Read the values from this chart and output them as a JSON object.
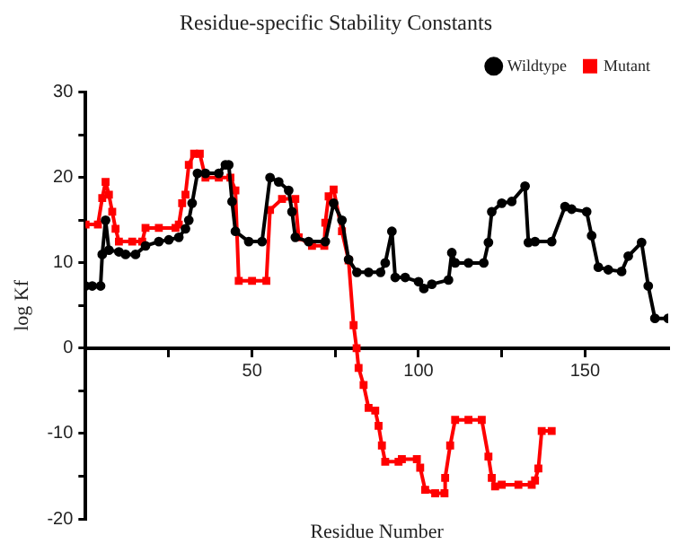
{
  "chart_data": {
    "type": "line",
    "title": "Residue-specific Stability Constants",
    "xlabel": "Residue Number",
    "ylabel": "log Kf",
    "xlim": [
      0,
      175
    ],
    "xticks": [
      {
        "value": 25,
        "label": null
      },
      50,
      {
        "value": 75,
        "label": null
      },
      100,
      {
        "value": 125,
        "label": null
      },
      150
    ],
    "ylim": [
      -20,
      30
    ],
    "yticks": [
      -20,
      {
        "value": -15,
        "label": null
      },
      -10,
      {
        "value": -5,
        "label": null
      },
      0,
      {
        "value": 5,
        "label": null
      },
      10,
      {
        "value": 15,
        "label": null
      },
      20,
      {
        "value": 25,
        "label": null
      },
      30
    ],
    "grid": false,
    "legend": "top right",
    "line_style": "solid",
    "series": [
      {
        "name": "Wildtype",
        "color": "#000000",
        "marker": "circle",
        "x": [
          0,
          2,
          4.5,
          5,
          6,
          7,
          10,
          12,
          15,
          18,
          22,
          25,
          28,
          30,
          31,
          32,
          33.6,
          36,
          40,
          42,
          43,
          44,
          45,
          49,
          53,
          55.4,
          58,
          61,
          62,
          63,
          67,
          72,
          74.5,
          77,
          79,
          81.5,
          85,
          88.6,
          90,
          92,
          93,
          96,
          100,
          101.6,
          104,
          109,
          110,
          111,
          115,
          119.6,
          121,
          122,
          125,
          128,
          132,
          133,
          135,
          140,
          144,
          146,
          150.5,
          152,
          154,
          157,
          161,
          163,
          167,
          169,
          171,
          175
        ],
        "values": [
          7.3,
          7.3,
          7.3,
          11,
          15,
          11.5,
          11.3,
          11,
          11,
          12,
          12.5,
          12.7,
          13,
          14,
          15,
          17,
          20.5,
          20.5,
          20.5,
          21.5,
          21.5,
          17.2,
          13.7,
          12.5,
          12.5,
          20,
          19.5,
          18.5,
          16,
          13,
          12.5,
          12.5,
          17,
          15,
          10.4,
          8.9,
          8.9,
          8.9,
          10,
          13.7,
          8.3,
          8.3,
          7.8,
          7,
          7.5,
          8,
          11.2,
          10,
          10,
          10,
          12.4,
          16,
          17,
          17.2,
          19,
          12.4,
          12.5,
          12.5,
          16.6,
          16.3,
          16,
          13.2,
          9.5,
          9.2,
          9,
          10.8,
          12.4,
          7.3,
          3.5,
          3.5
        ]
      },
      {
        "name": "Mutant",
        "color": "#ff0000",
        "marker": "square",
        "x": [
          0,
          3.7,
          5,
          6,
          7,
          8,
          9,
          10,
          14,
          17,
          18,
          22,
          27,
          28,
          29,
          30,
          31,
          32.6,
          34.3,
          36,
          40,
          43.5,
          45,
          46,
          50,
          54.3,
          55.4,
          59,
          63,
          64,
          68,
          71.7,
          72,
          73,
          74.5,
          77,
          79,
          80.5,
          81.4,
          82,
          83.5,
          85,
          87,
          88,
          89,
          90,
          94,
          95,
          99.5,
          100.5,
          102,
          105,
          107.8,
          108,
          109.5,
          111,
          115,
          119,
          121,
          122,
          123,
          125,
          130,
          134,
          135,
          136,
          137,
          140
        ],
        "values": [
          14.5,
          14.5,
          17.6,
          19.5,
          18,
          16,
          14,
          12.5,
          12.5,
          12.5,
          14.1,
          14.1,
          14.1,
          14.5,
          17,
          18,
          21.5,
          22.8,
          22.8,
          20,
          20,
          20,
          18.5,
          7.9,
          7.9,
          7.9,
          16.2,
          17.5,
          17.5,
          13,
          12,
          12,
          14.7,
          17.8,
          18.6,
          13.7,
          10.3,
          2.7,
          0,
          -2.3,
          -4.3,
          -7,
          -7.3,
          -9.1,
          -11.4,
          -13.3,
          -13.3,
          -13,
          -13,
          -14,
          -16.6,
          -17,
          -17,
          -15.2,
          -11.4,
          -8.4,
          -8.4,
          -8.4,
          -12.7,
          -15.2,
          -16.2,
          -16,
          -16,
          -16,
          -15.5,
          -14.1,
          -9.7,
          -9.7
        ]
      }
    ]
  }
}
